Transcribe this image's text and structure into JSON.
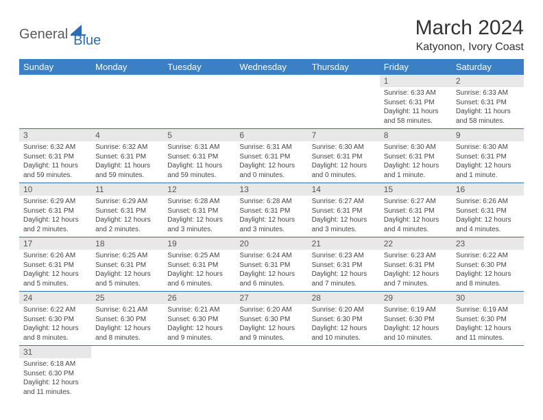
{
  "logo": {
    "general": "General",
    "blue": "Blue"
  },
  "title": "March 2024",
  "location": "Katyonon, Ivory Coast",
  "colors": {
    "header_bg": "#3b7fc4",
    "header_fg": "#ffffff",
    "daynum_bg": "#e8e8e8",
    "row_border": "#2a6db5",
    "logo_accent": "#2a6db5",
    "logo_gray": "#5a5a5a"
  },
  "weekdays": [
    "Sunday",
    "Monday",
    "Tuesday",
    "Wednesday",
    "Thursday",
    "Friday",
    "Saturday"
  ],
  "weeks": [
    {
      "nums": [
        "",
        "",
        "",
        "",
        "",
        "1",
        "2"
      ],
      "cells": [
        "",
        "",
        "",
        "",
        "",
        "Sunrise: 6:33 AM\nSunset: 6:31 PM\nDaylight: 11 hours and 58 minutes.",
        "Sunrise: 6:33 AM\nSunset: 6:31 PM\nDaylight: 11 hours and 58 minutes."
      ]
    },
    {
      "nums": [
        "3",
        "4",
        "5",
        "6",
        "7",
        "8",
        "9"
      ],
      "cells": [
        "Sunrise: 6:32 AM\nSunset: 6:31 PM\nDaylight: 11 hours and 59 minutes.",
        "Sunrise: 6:32 AM\nSunset: 6:31 PM\nDaylight: 11 hours and 59 minutes.",
        "Sunrise: 6:31 AM\nSunset: 6:31 PM\nDaylight: 11 hours and 59 minutes.",
        "Sunrise: 6:31 AM\nSunset: 6:31 PM\nDaylight: 12 hours and 0 minutes.",
        "Sunrise: 6:30 AM\nSunset: 6:31 PM\nDaylight: 12 hours and 0 minutes.",
        "Sunrise: 6:30 AM\nSunset: 6:31 PM\nDaylight: 12 hours and 1 minute.",
        "Sunrise: 6:30 AM\nSunset: 6:31 PM\nDaylight: 12 hours and 1 minute."
      ]
    },
    {
      "nums": [
        "10",
        "11",
        "12",
        "13",
        "14",
        "15",
        "16"
      ],
      "cells": [
        "Sunrise: 6:29 AM\nSunset: 6:31 PM\nDaylight: 12 hours and 2 minutes.",
        "Sunrise: 6:29 AM\nSunset: 6:31 PM\nDaylight: 12 hours and 2 minutes.",
        "Sunrise: 6:28 AM\nSunset: 6:31 PM\nDaylight: 12 hours and 3 minutes.",
        "Sunrise: 6:28 AM\nSunset: 6:31 PM\nDaylight: 12 hours and 3 minutes.",
        "Sunrise: 6:27 AM\nSunset: 6:31 PM\nDaylight: 12 hours and 3 minutes.",
        "Sunrise: 6:27 AM\nSunset: 6:31 PM\nDaylight: 12 hours and 4 minutes.",
        "Sunrise: 6:26 AM\nSunset: 6:31 PM\nDaylight: 12 hours and 4 minutes."
      ]
    },
    {
      "nums": [
        "17",
        "18",
        "19",
        "20",
        "21",
        "22",
        "23"
      ],
      "cells": [
        "Sunrise: 6:26 AM\nSunset: 6:31 PM\nDaylight: 12 hours and 5 minutes.",
        "Sunrise: 6:25 AM\nSunset: 6:31 PM\nDaylight: 12 hours and 5 minutes.",
        "Sunrise: 6:25 AM\nSunset: 6:31 PM\nDaylight: 12 hours and 6 minutes.",
        "Sunrise: 6:24 AM\nSunset: 6:31 PM\nDaylight: 12 hours and 6 minutes.",
        "Sunrise: 6:23 AM\nSunset: 6:31 PM\nDaylight: 12 hours and 7 minutes.",
        "Sunrise: 6:23 AM\nSunset: 6:31 PM\nDaylight: 12 hours and 7 minutes.",
        "Sunrise: 6:22 AM\nSunset: 6:30 PM\nDaylight: 12 hours and 8 minutes."
      ]
    },
    {
      "nums": [
        "24",
        "25",
        "26",
        "27",
        "28",
        "29",
        "30"
      ],
      "cells": [
        "Sunrise: 6:22 AM\nSunset: 6:30 PM\nDaylight: 12 hours and 8 minutes.",
        "Sunrise: 6:21 AM\nSunset: 6:30 PM\nDaylight: 12 hours and 8 minutes.",
        "Sunrise: 6:21 AM\nSunset: 6:30 PM\nDaylight: 12 hours and 9 minutes.",
        "Sunrise: 6:20 AM\nSunset: 6:30 PM\nDaylight: 12 hours and 9 minutes.",
        "Sunrise: 6:20 AM\nSunset: 6:30 PM\nDaylight: 12 hours and 10 minutes.",
        "Sunrise: 6:19 AM\nSunset: 6:30 PM\nDaylight: 12 hours and 10 minutes.",
        "Sunrise: 6:19 AM\nSunset: 6:30 PM\nDaylight: 12 hours and 11 minutes."
      ]
    },
    {
      "nums": [
        "31",
        "",
        "",
        "",
        "",
        "",
        ""
      ],
      "cells": [
        "Sunrise: 6:18 AM\nSunset: 6:30 PM\nDaylight: 12 hours and 11 minutes.",
        "",
        "",
        "",
        "",
        "",
        ""
      ]
    }
  ]
}
